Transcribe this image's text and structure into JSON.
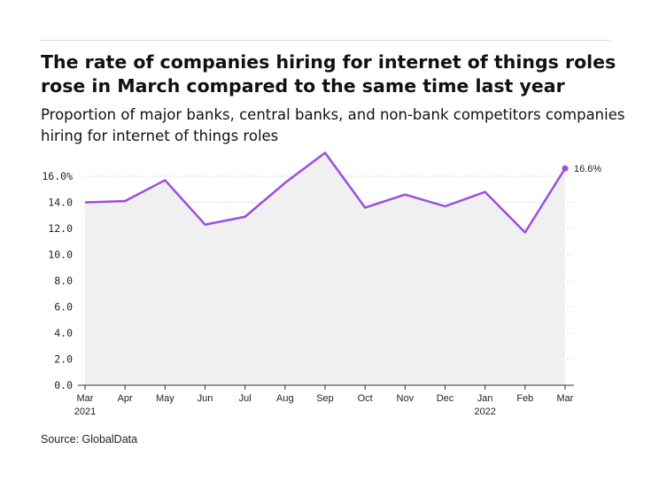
{
  "title": "The rate of companies hiring for internet of things roles rose in March compared to the same time last year",
  "subtitle": "Proportion of major banks, central banks, and non-bank competitors companies hiring for internet of things roles",
  "source": "Source: GlobalData",
  "colors": {
    "line": "#9b4fdc",
    "area": "#f0f0f0",
    "grid": "#cccccc",
    "axis": "#333333"
  },
  "chart_data": {
    "type": "area",
    "categories": [
      "Mar",
      "Apr",
      "May",
      "Jun",
      "Jul",
      "Aug",
      "Sep",
      "Oct",
      "Nov",
      "Dec",
      "Jan",
      "Feb",
      "Mar"
    ],
    "year_labels": [
      "2021",
      "",
      "",
      "",
      "",
      "",
      "",
      "",
      "",
      "",
      "2022",
      "",
      ""
    ],
    "series": [
      {
        "values": [
          14.0,
          14.1,
          15.7,
          12.3,
          12.9,
          15.5,
          17.8,
          13.6,
          14.6,
          13.7,
          14.8,
          11.7,
          16.6
        ]
      }
    ],
    "y_ticks": [
      "0.0",
      "2.0",
      "4.0",
      "6.0",
      "8.0",
      "10.0",
      "12.0",
      "14.0",
      "16.0%"
    ],
    "ylim": [
      0,
      17.9
    ],
    "last_value_label": "16.6%",
    "xlabel": "",
    "ylabel": "",
    "grid": "horizontal dotted",
    "legend": "none"
  }
}
